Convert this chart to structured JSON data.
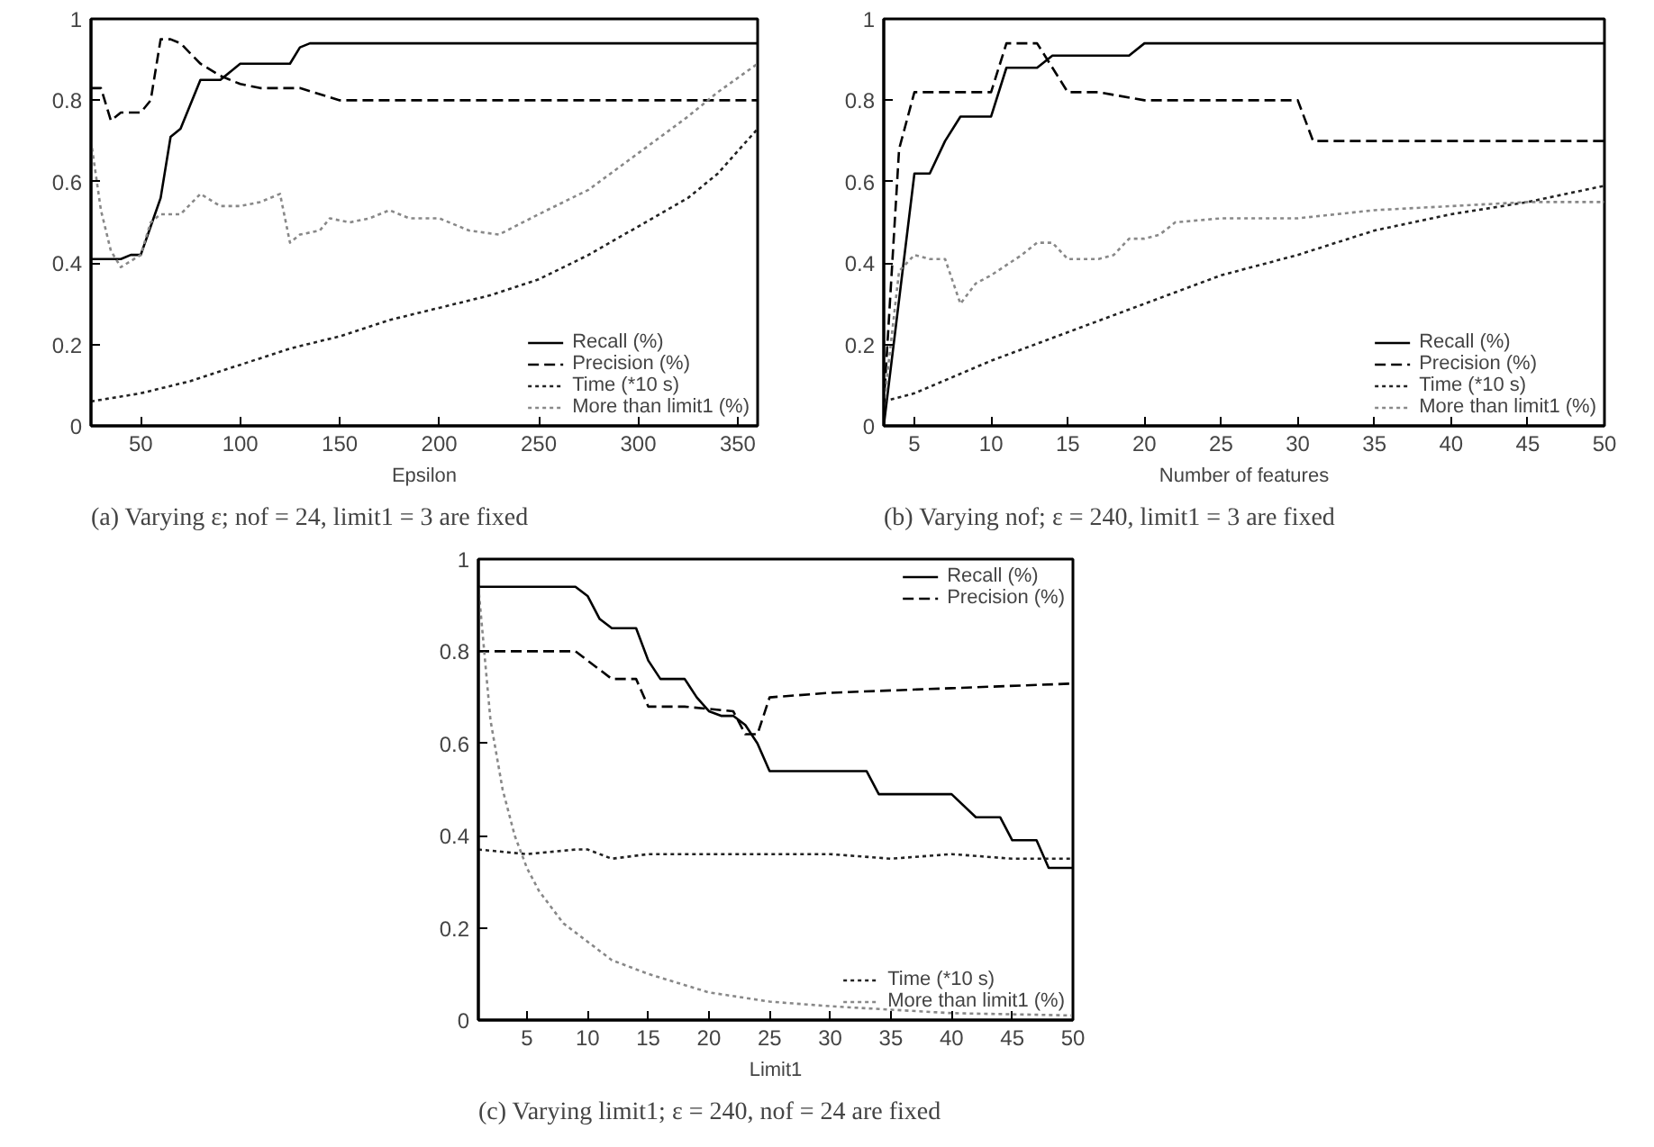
{
  "chart_data": [
    {
      "type": "line",
      "xlabel": "Epsilon",
      "xlim": [
        25,
        360
      ],
      "xticks": [
        50,
        100,
        150,
        200,
        250,
        300,
        350
      ],
      "ylim": [
        0,
        1
      ],
      "yticks": [
        0,
        0.2,
        0.4,
        0.6,
        0.8,
        1
      ],
      "legend": "bottom right",
      "grid": false,
      "annotations": [
        "(a) Varying ε; nof = 24, limit1 = 3 are fixed"
      ],
      "series": [
        {
          "name": "Recall (%)",
          "color": "#000000",
          "line_style": "solid",
          "x": [
            25,
            40,
            45,
            50,
            55,
            60,
            65,
            70,
            80,
            90,
            100,
            120,
            125,
            130,
            135,
            360
          ],
          "values": [
            0.41,
            0.41,
            0.42,
            0.42,
            0.49,
            0.56,
            0.71,
            0.73,
            0.85,
            0.85,
            0.89,
            0.89,
            0.89,
            0.93,
            0.94,
            0.94
          ]
        },
        {
          "name": "Precision (%)",
          "color": "#000000",
          "line_style": "dashed",
          "x": [
            25,
            30,
            35,
            40,
            50,
            55,
            60,
            65,
            70,
            80,
            90,
            100,
            110,
            130,
            150,
            360
          ],
          "values": [
            0.83,
            0.83,
            0.75,
            0.77,
            0.77,
            0.8,
            0.95,
            0.95,
            0.94,
            0.89,
            0.86,
            0.84,
            0.83,
            0.83,
            0.8,
            0.8
          ]
        },
        {
          "name": "Time (*10 s)",
          "color": "#222222",
          "line_style": "dotted",
          "x": [
            25,
            50,
            75,
            100,
            125,
            150,
            175,
            200,
            225,
            250,
            275,
            300,
            325,
            340,
            360
          ],
          "values": [
            0.06,
            0.08,
            0.11,
            0.15,
            0.19,
            0.22,
            0.26,
            0.29,
            0.32,
            0.36,
            0.42,
            0.49,
            0.56,
            0.62,
            0.73
          ]
        },
        {
          "name": "More than limit1 (%)",
          "color": "#888888",
          "line_style": "dotted",
          "x": [
            25,
            30,
            35,
            40,
            50,
            55,
            60,
            70,
            80,
            90,
            100,
            110,
            120,
            125,
            130,
            140,
            145,
            155,
            165,
            175,
            185,
            200,
            215,
            230,
            250,
            275,
            300,
            325,
            340,
            360
          ],
          "values": [
            0.7,
            0.53,
            0.43,
            0.39,
            0.42,
            0.5,
            0.52,
            0.52,
            0.57,
            0.54,
            0.54,
            0.55,
            0.57,
            0.45,
            0.47,
            0.48,
            0.51,
            0.5,
            0.51,
            0.53,
            0.51,
            0.51,
            0.48,
            0.47,
            0.52,
            0.58,
            0.67,
            0.76,
            0.82,
            0.89
          ]
        }
      ]
    },
    {
      "type": "line",
      "xlabel": "Number of features",
      "xlim": [
        3,
        50
      ],
      "xticks": [
        5,
        10,
        15,
        20,
        25,
        30,
        35,
        40,
        45,
        50
      ],
      "ylim": [
        0,
        1
      ],
      "yticks": [
        0,
        0.2,
        0.4,
        0.6,
        0.8,
        1
      ],
      "legend": "bottom right",
      "grid": false,
      "annotations": [
        "(b) Varying nof; ε = 240, limit1 = 3 are fixed"
      ],
      "series": [
        {
          "name": "Recall (%)",
          "color": "#000000",
          "line_style": "solid",
          "x": [
            3,
            5,
            6,
            7,
            8,
            10,
            11,
            13,
            14,
            19,
            20,
            50
          ],
          "values": [
            0.0,
            0.62,
            0.62,
            0.7,
            0.76,
            0.76,
            0.88,
            0.88,
            0.91,
            0.91,
            0.94,
            0.94
          ]
        },
        {
          "name": "Precision (%)",
          "color": "#000000",
          "line_style": "dashed",
          "x": [
            3,
            4,
            5,
            10,
            11,
            13,
            15,
            17,
            20,
            30,
            31,
            50
          ],
          "values": [
            0.05,
            0.68,
            0.82,
            0.82,
            0.94,
            0.94,
            0.82,
            0.82,
            0.8,
            0.8,
            0.7,
            0.7
          ]
        },
        {
          "name": "Time (*10 s)",
          "color": "#222222",
          "line_style": "dotted",
          "x": [
            3,
            5,
            10,
            15,
            20,
            25,
            30,
            35,
            40,
            45,
            50
          ],
          "values": [
            0.06,
            0.08,
            0.16,
            0.23,
            0.3,
            0.37,
            0.42,
            0.48,
            0.52,
            0.55,
            0.59
          ]
        },
        {
          "name": "More than limit1 (%)",
          "color": "#888888",
          "line_style": "dotted",
          "x": [
            3,
            4,
            5,
            6,
            7,
            8,
            9,
            10,
            12,
            13,
            14,
            15,
            17,
            18,
            19,
            20,
            21,
            22,
            25,
            30,
            35,
            40,
            45,
            50
          ],
          "values": [
            0.05,
            0.38,
            0.42,
            0.41,
            0.41,
            0.3,
            0.35,
            0.37,
            0.42,
            0.45,
            0.45,
            0.41,
            0.41,
            0.42,
            0.46,
            0.46,
            0.47,
            0.5,
            0.51,
            0.51,
            0.53,
            0.54,
            0.55,
            0.55
          ]
        }
      ]
    },
    {
      "type": "line",
      "xlabel": "Limit1",
      "xlim": [
        1,
        50
      ],
      "xticks": [
        5,
        10,
        15,
        20,
        25,
        30,
        35,
        40,
        45,
        50
      ],
      "ylim": [
        0,
        1
      ],
      "yticks": [
        0,
        0.2,
        0.4,
        0.6,
        0.8,
        1
      ],
      "legend": "right",
      "grid": false,
      "annotations": [
        "(c) Varying limit1; ε = 240, nof = 24 are fixed"
      ],
      "series": [
        {
          "name": "Recall (%)",
          "color": "#000000",
          "line_style": "solid",
          "x": [
            1,
            9,
            10,
            11,
            12,
            14,
            15,
            16,
            18,
            19,
            20,
            21,
            22,
            23,
            24,
            25,
            33,
            34,
            40,
            42,
            44,
            45,
            47,
            48,
            50
          ],
          "values": [
            0.94,
            0.94,
            0.92,
            0.87,
            0.85,
            0.85,
            0.78,
            0.74,
            0.74,
            0.7,
            0.67,
            0.66,
            0.66,
            0.64,
            0.6,
            0.54,
            0.54,
            0.49,
            0.49,
            0.44,
            0.44,
            0.39,
            0.39,
            0.33,
            0.33
          ]
        },
        {
          "name": "Precision (%)",
          "color": "#000000",
          "line_style": "dashed",
          "x": [
            1,
            9,
            11,
            12,
            14,
            15,
            18,
            22,
            23,
            24,
            25,
            30,
            40,
            50
          ],
          "values": [
            0.8,
            0.8,
            0.76,
            0.74,
            0.74,
            0.68,
            0.68,
            0.67,
            0.62,
            0.62,
            0.7,
            0.71,
            0.72,
            0.73
          ]
        },
        {
          "name": "Time (*10 s)",
          "color": "#222222",
          "line_style": "dotted",
          "x": [
            1,
            5,
            9,
            10,
            12,
            15,
            20,
            25,
            30,
            35,
            40,
            45,
            50
          ],
          "values": [
            0.37,
            0.36,
            0.37,
            0.37,
            0.35,
            0.36,
            0.36,
            0.36,
            0.36,
            0.35,
            0.36,
            0.35,
            0.35
          ]
        },
        {
          "name": "More than limit1 (%)",
          "color": "#888888",
          "line_style": "dotted",
          "x": [
            1,
            2,
            3,
            4,
            5,
            6,
            8,
            10,
            12,
            15,
            20,
            25,
            30,
            40,
            50
          ],
          "values": [
            0.94,
            0.65,
            0.5,
            0.4,
            0.33,
            0.28,
            0.21,
            0.17,
            0.13,
            0.1,
            0.06,
            0.04,
            0.03,
            0.015,
            0.01
          ]
        }
      ]
    }
  ]
}
